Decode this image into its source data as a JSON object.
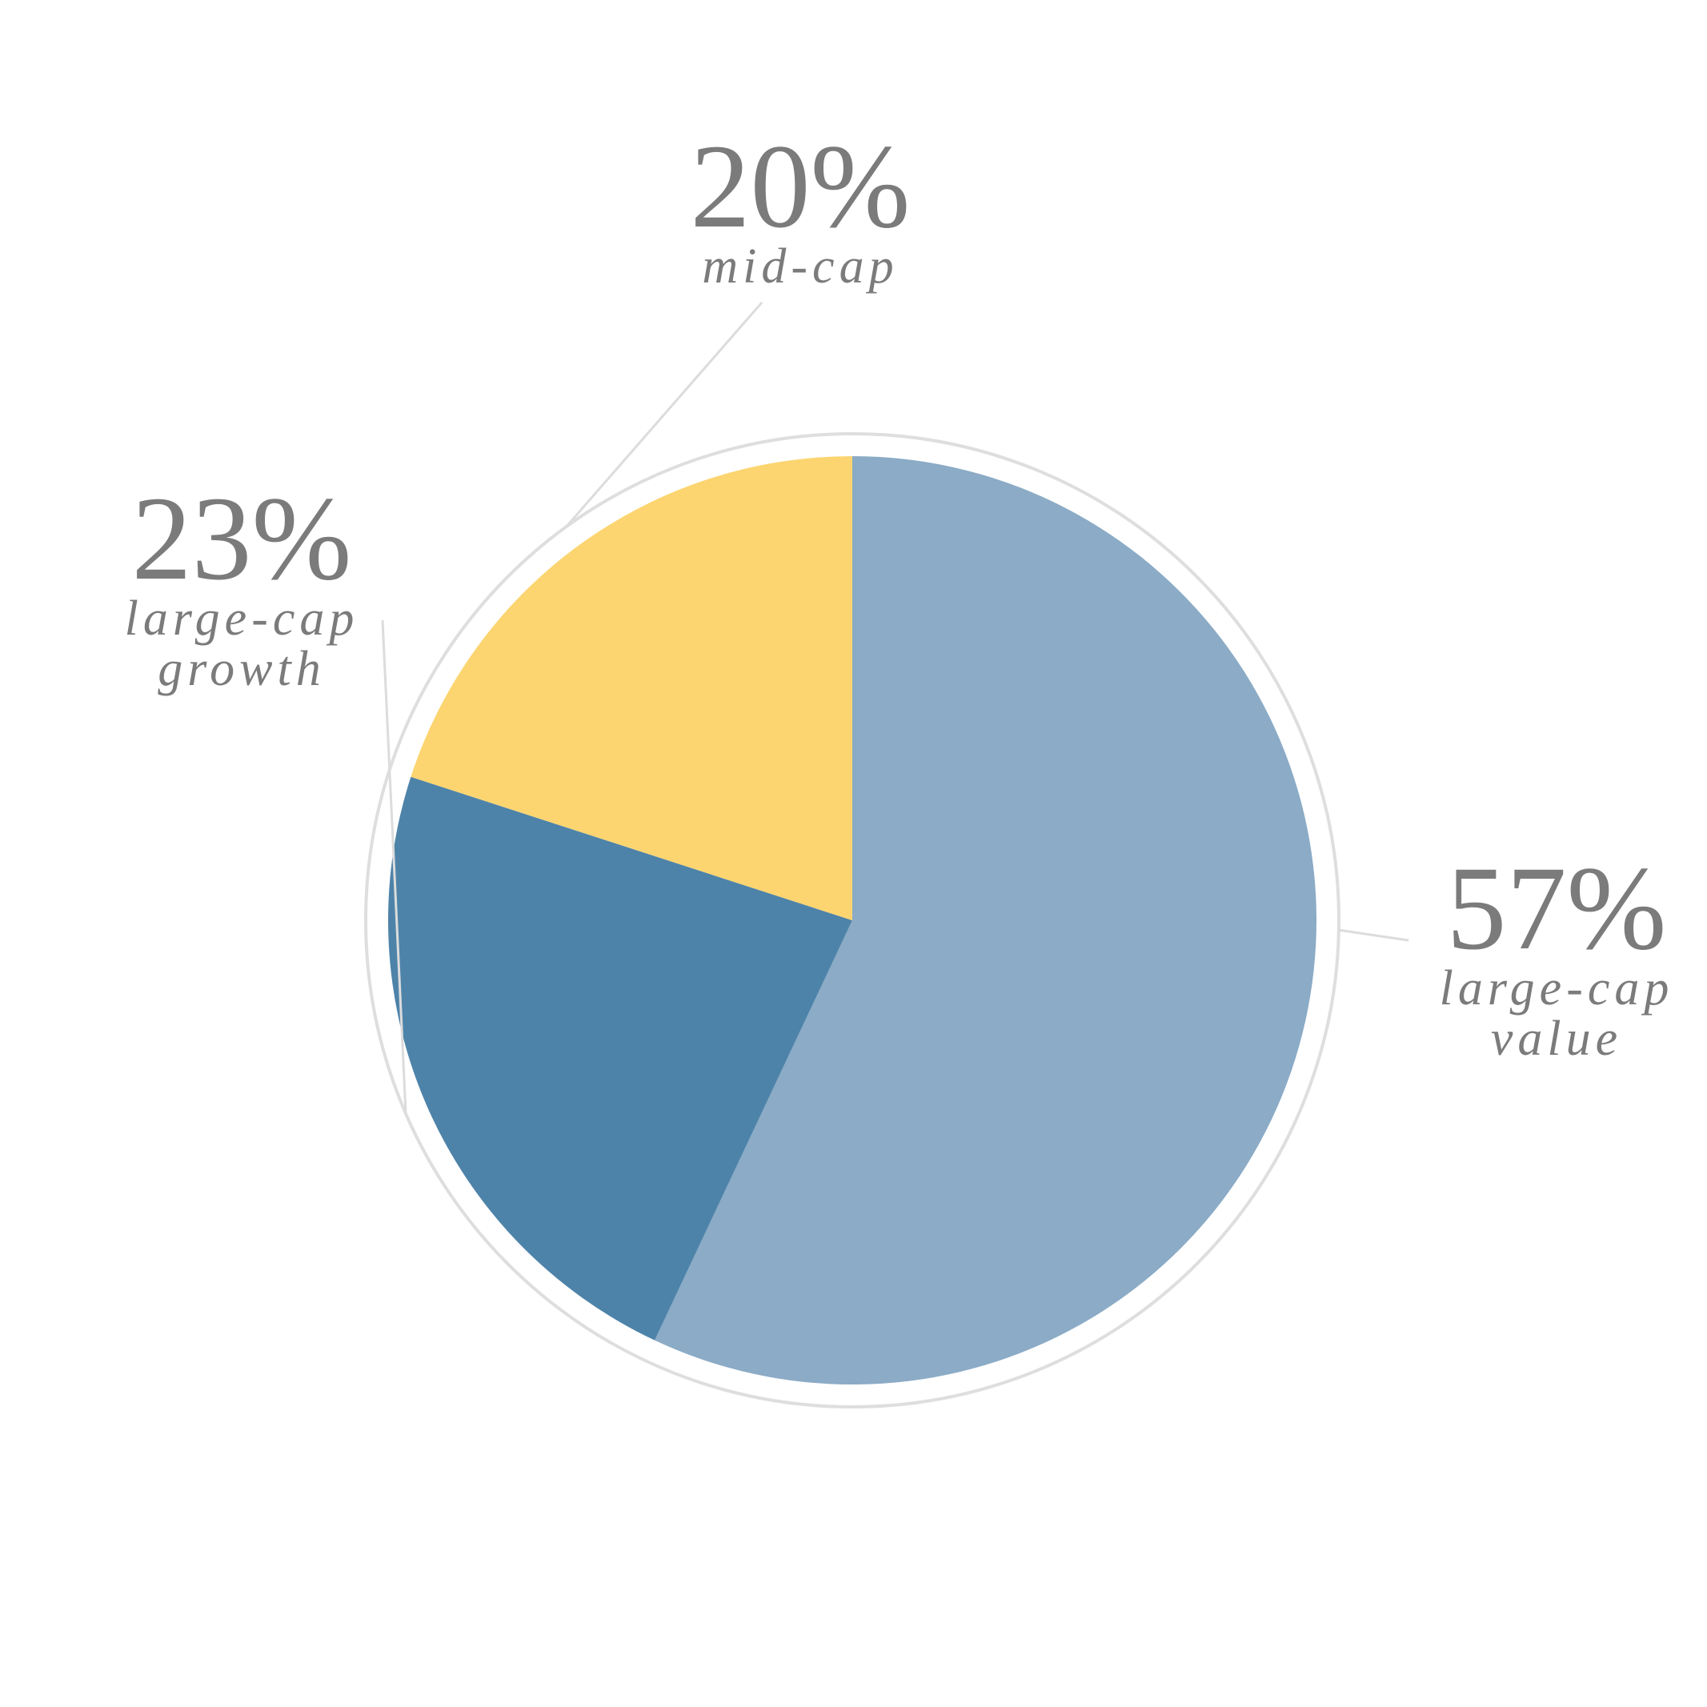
{
  "chart_data": {
    "type": "pie",
    "categories": [
      "large-cap value",
      "large-cap growth",
      "mid-cap"
    ],
    "values": [
      57,
      23,
      20
    ],
    "labels": [
      {
        "percent": "57%",
        "lines": [
          "large-cap",
          "value"
        ]
      },
      {
        "percent": "23%",
        "lines": [
          "large-cap",
          "growth"
        ]
      },
      {
        "percent": "20%",
        "lines": [
          "mid-cap"
        ]
      }
    ],
    "colors": [
      "#8babc6",
      "#4e83a9",
      "#fcd571"
    ],
    "ring_color": "#dedede",
    "leader_color": "#dcdcdc",
    "label_color": "#7b7b7b",
    "title": "",
    "legend": "none"
  }
}
